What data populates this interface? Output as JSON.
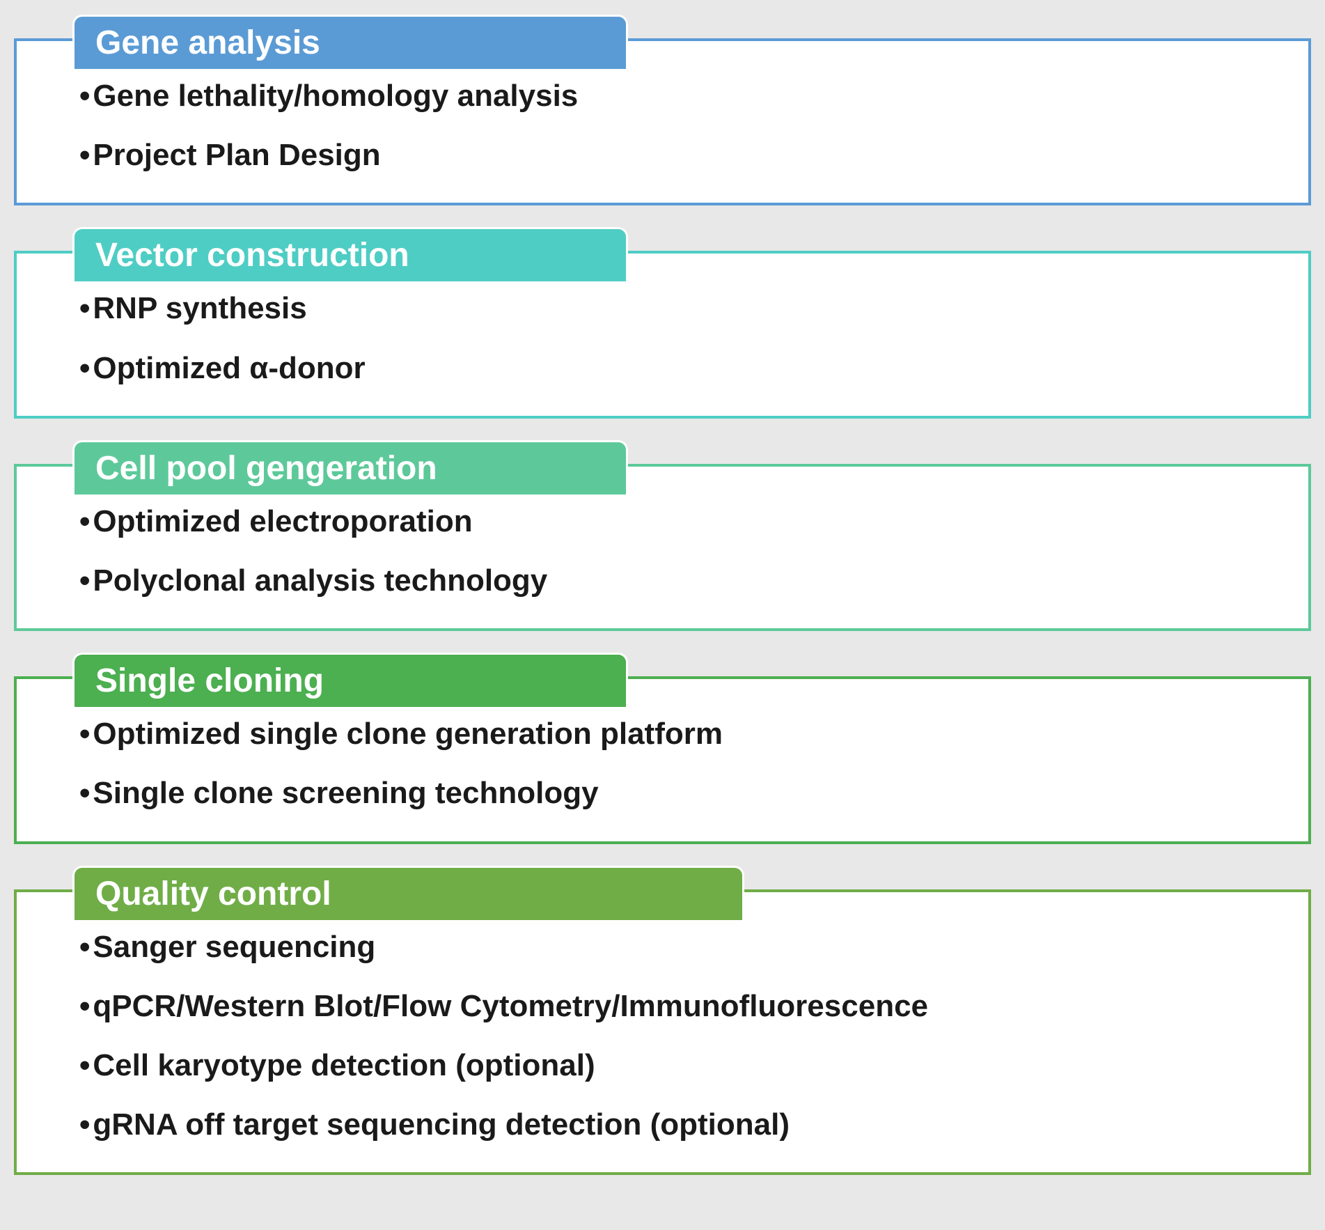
{
  "layout": {
    "background_color": "#e8e8e8",
    "section_background": "#ffffff",
    "header_text_color": "#ffffff",
    "bullet_text_color": "#1a1a1a",
    "header_fontsize": 48,
    "bullet_fontsize": 44,
    "header_fontweight": 700,
    "bullet_fontweight": 700,
    "border_width": 4,
    "header_border_radius": 14,
    "header_width_pct": 43
  },
  "sections": [
    {
      "title": "Gene analysis",
      "header_color": "#5b9bd5",
      "border_color": "#5b9bd5",
      "items": [
        "Gene lethality/homology analysis",
        "Project Plan Design"
      ]
    },
    {
      "title": "Vector construction",
      "header_color": "#4ecdc4",
      "border_color": "#4ecdc4",
      "items": [
        "RNP synthesis",
        "Optimized α-donor"
      ]
    },
    {
      "title": "Cell pool gengeration",
      "header_color": "#5dc99a",
      "border_color": "#5dc99a",
      "items": [
        "Optimized electroporation",
        "Polyclonal analysis technology"
      ]
    },
    {
      "title": "Single cloning",
      "header_color": "#4caf50",
      "border_color": "#4caf50",
      "items": [
        "Optimized single clone generation platform",
        "Single clone screening technology"
      ]
    },
    {
      "title": "Quality control",
      "header_color": "#70ad47",
      "border_color": "#70ad47",
      "header_width_pct": 52,
      "items": [
        "Sanger sequencing",
        "qPCR/Western Blot/Flow Cytometry/Immunofluorescence",
        "Cell karyotype detection (optional)",
        "gRNA off target sequencing detection (optional)"
      ]
    }
  ]
}
